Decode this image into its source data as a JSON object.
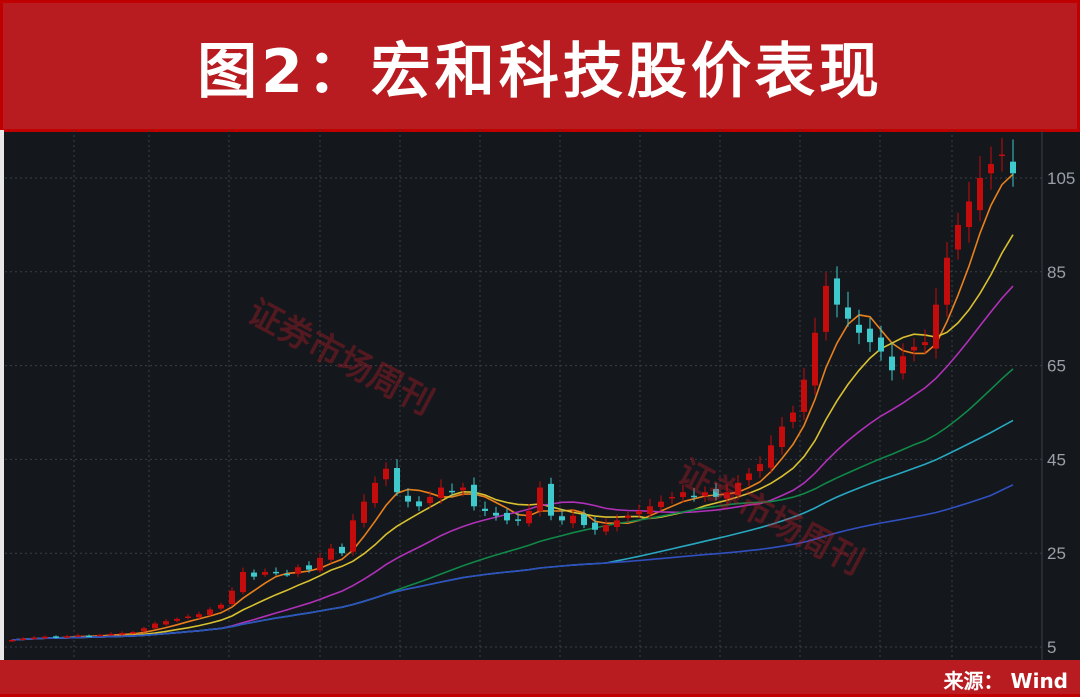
{
  "title": "图2：宏和科技股价表现",
  "source": "来源： Wind",
  "watermark": "证券市场周刊",
  "colors": {
    "up": "#c40c0c",
    "down": "#3ec9cc",
    "banner": "#b81c20",
    "background": "#14171c",
    "grid": "#3a3f47",
    "axis_text": "#9aa0a8"
  },
  "chart_data": {
    "type": "candlestick",
    "title": "图2：宏和科技股价表现",
    "ylim": [
      3,
      115
    ],
    "yticks": [
      5,
      25,
      45,
      65,
      85,
      105
    ],
    "grid": true,
    "closes": [
      6.5,
      6.8,
      7,
      7.2,
      7,
      7.3,
      7.5,
      7.4,
      7.6,
      7.8,
      8,
      8.2,
      9,
      10,
      10.5,
      11,
      11.5,
      12,
      13,
      14,
      17,
      21,
      20,
      21,
      21,
      20.5,
      22,
      21.5,
      24,
      26,
      25,
      32,
      36,
      40,
      43,
      38,
      36,
      35,
      37,
      39,
      38,
      39,
      35,
      34,
      33,
      32,
      32,
      34,
      39,
      33,
      32,
      33,
      31,
      30,
      31,
      32,
      33,
      34,
      35,
      36,
      37,
      38,
      37,
      38,
      37,
      38,
      40,
      42,
      44,
      48,
      52,
      55,
      62,
      72,
      82,
      78,
      75,
      72,
      70,
      68,
      64,
      67,
      69,
      70,
      78,
      88,
      95,
      100,
      105,
      108,
      110,
      106
    ],
    "moving_averages": [
      {
        "period": 5,
        "color": "#e8801c"
      },
      {
        "period": 10,
        "color": "#d8c030"
      },
      {
        "period": 20,
        "color": "#b030b8"
      },
      {
        "period": 35,
        "color": "#108848"
      },
      {
        "period": 55,
        "color": "#28a8c0"
      },
      {
        "period": 90,
        "color": "#3050c0"
      }
    ]
  }
}
